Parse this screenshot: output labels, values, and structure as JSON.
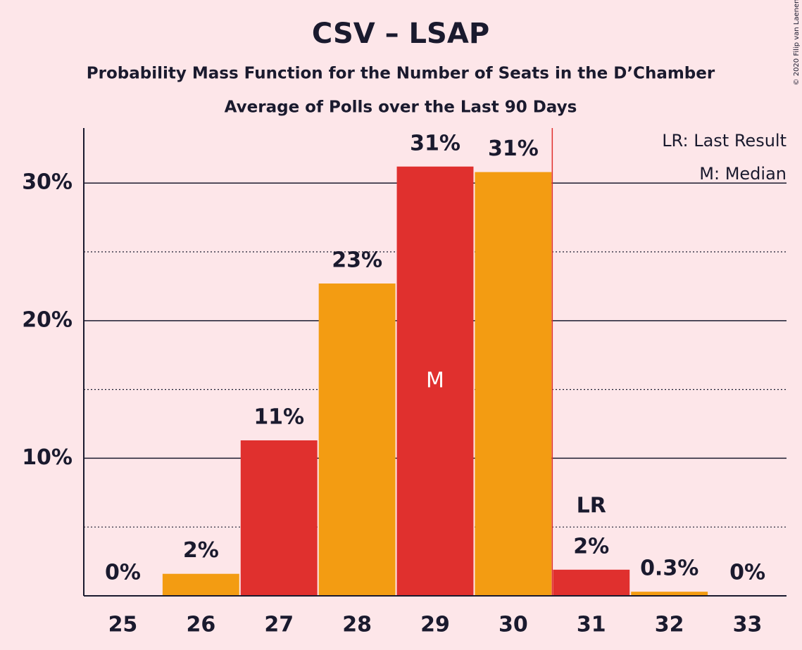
{
  "chart_data": {
    "type": "bar",
    "title": "CSV – LSAP",
    "subtitle": "Probability Mass Function for the Number of Seats in the D’Chamber",
    "subsubtitle": "Average of Polls over the Last 90 Days",
    "categories": [
      "25",
      "26",
      "27",
      "28",
      "29",
      "30",
      "31",
      "32",
      "33"
    ],
    "values": [
      0,
      1.6,
      11.3,
      22.7,
      31.2,
      30.8,
      1.9,
      0.3,
      0
    ],
    "value_labels": [
      "0%",
      "2%",
      "11%",
      "23%",
      "31%",
      "31%",
      "2%",
      "0.3%",
      "0%"
    ],
    "colors": [
      "#e0302e",
      "#f39c12",
      "#e0302e",
      "#f39c12",
      "#e0302e",
      "#f39c12",
      "#e0302e",
      "#f39c12",
      "#e0302e"
    ],
    "ylim": [
      0,
      34
    ],
    "yticks": [
      {
        "value": 10,
        "label": "10%"
      },
      {
        "value": 20,
        "label": "20%"
      },
      {
        "value": 30,
        "label": "30%"
      }
    ],
    "minor_yticks": [
      5,
      15,
      25
    ],
    "grid": true,
    "median_category": "29",
    "median_label": "M",
    "last_result_category": "31",
    "last_result_label": "LR",
    "last_result_color": "#e0302e",
    "legend": [
      "LR: Last Result",
      "M: Median"
    ],
    "credit": "© 2020 Filip van Laenen"
  }
}
